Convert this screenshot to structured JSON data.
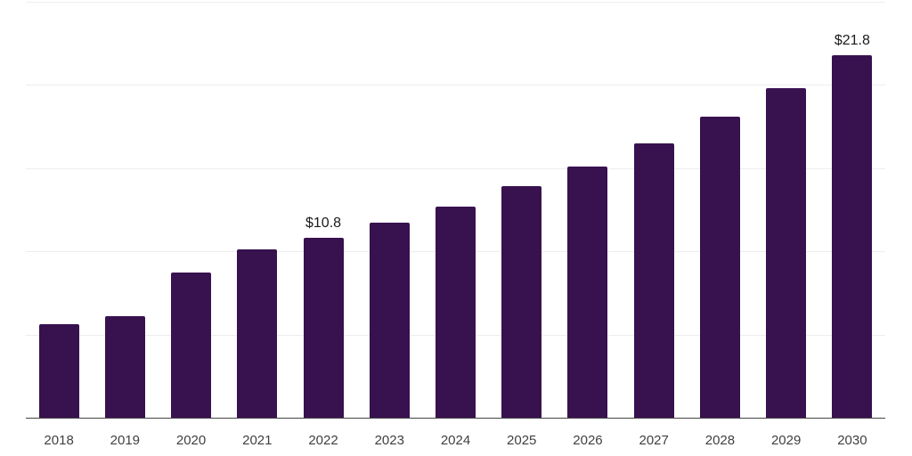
{
  "chart_data": {
    "type": "bar",
    "title": "",
    "xlabel": "",
    "ylabel": "",
    "categories": [
      "2018",
      "2019",
      "2020",
      "2021",
      "2022",
      "2023",
      "2024",
      "2025",
      "2026",
      "2027",
      "2028",
      "2029",
      "2030"
    ],
    "values": [
      5.6,
      6.1,
      8.7,
      10.1,
      10.8,
      11.7,
      12.7,
      13.9,
      15.1,
      16.5,
      18.1,
      19.8,
      21.8
    ],
    "data_labels": [
      "",
      "",
      "",
      "",
      "$10.8",
      "",
      "",
      "",
      "",
      "",
      "",
      "",
      "$21.8"
    ],
    "ylim": [
      0,
      25
    ],
    "gridline_values": [
      5,
      10,
      15,
      20,
      25
    ],
    "grid": "horizontal-only",
    "y_axis_labels": "none",
    "legend": "none",
    "colors": {
      "bar": "#38114f",
      "gridline": "#ededed",
      "axis_line": "#444444",
      "tick_label": "#404040",
      "data_label": "#1a1a1a",
      "background": "#ffffff"
    }
  }
}
